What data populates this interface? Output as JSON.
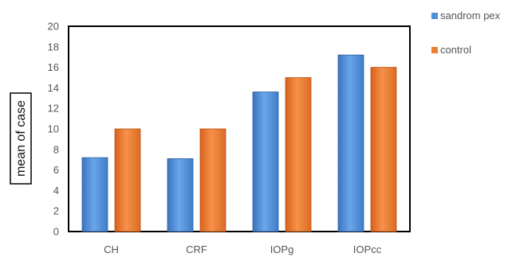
{
  "chart_data": {
    "type": "bar",
    "categories": [
      "CH",
      "CRF",
      "IOPg",
      "IOPcc"
    ],
    "series": [
      {
        "name": "sandrom pex",
        "values": [
          7.2,
          7.1,
          13.6,
          17.2
        ],
        "color": "#4f8fd6"
      },
      {
        "name": "control",
        "values": [
          10.0,
          10.0,
          15.0,
          16.0
        ],
        "color": "#ed7d31"
      }
    ],
    "title": "",
    "xlabel": "",
    "ylabel": "mean of case",
    "ylim": [
      0,
      20
    ],
    "yticks": [
      0,
      2,
      4,
      6,
      8,
      10,
      12,
      14,
      16,
      18,
      20
    ],
    "grid": false,
    "legend_position": "top-right"
  }
}
